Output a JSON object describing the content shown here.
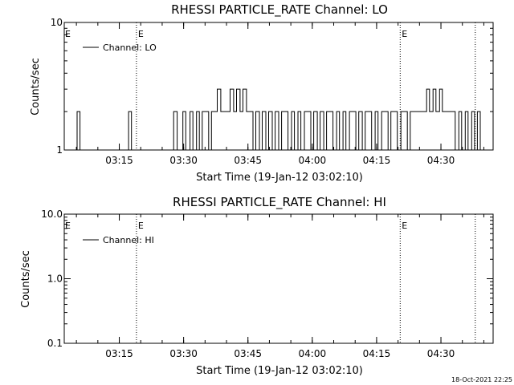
{
  "chart_data": [
    {
      "type": "line",
      "title": "RHESSI PARTICLE_RATE Channel: LO",
      "xlabel": "Start Time (19-Jan-12 03:02:10)",
      "ylabel": "Counts/sec",
      "y_scale": "log",
      "ylim": [
        1,
        10
      ],
      "xlim": [
        "03:02:10",
        "04:42:10"
      ],
      "x_ticks": [
        "03:15",
        "03:30",
        "03:45",
        "04:00",
        "04:15",
        "04:30"
      ],
      "y_ticks": [
        "1",
        "10"
      ],
      "legend": {
        "label": "Channel: LO",
        "placement": "top-left"
      },
      "event_lines": [
        {
          "time": "03:19:00",
          "label": "E"
        },
        {
          "time": "04:20:30",
          "label": "E"
        },
        {
          "time": "04:38:00",
          "label": ""
        }
      ],
      "series": [
        {
          "name": "Channel: LO",
          "x": [
            "03:02:10",
            "03:04:30",
            "03:05:10",
            "03:05:50",
            "03:16:30",
            "03:17:10",
            "03:17:50",
            "03:27:00",
            "03:27:40",
            "03:28:30",
            "03:29:10",
            "03:29:50",
            "03:30:30",
            "03:31:30",
            "03:32:10",
            "03:33:00",
            "03:33:40",
            "03:34:20",
            "03:35:00",
            "03:35:50",
            "03:36:30",
            "03:37:10",
            "03:37:50",
            "03:38:40",
            "03:39:20",
            "03:40:10",
            "03:40:50",
            "03:41:40",
            "03:42:20",
            "03:43:10",
            "03:43:50",
            "03:44:40",
            "03:45:20",
            "03:46:10",
            "03:46:50",
            "03:47:40",
            "03:48:20",
            "03:49:10",
            "03:49:50",
            "03:50:40",
            "03:51:20",
            "03:52:10",
            "03:52:50",
            "03:53:40",
            "03:54:20",
            "03:55:10",
            "03:55:50",
            "03:56:40",
            "03:57:20",
            "03:58:10",
            "03:58:50",
            "03:59:40",
            "04:00:20",
            "04:01:10",
            "04:01:50",
            "04:02:40",
            "04:03:20",
            "04:04:10",
            "04:04:50",
            "04:05:40",
            "04:06:20",
            "04:07:10",
            "04:07:50",
            "04:08:40",
            "04:09:20",
            "04:10:10",
            "04:10:50",
            "04:11:40",
            "04:12:20",
            "04:13:10",
            "04:13:50",
            "04:14:40",
            "04:15:20",
            "04:16:10",
            "04:16:50",
            "04:17:40",
            "04:18:20",
            "04:19:10",
            "04:19:50",
            "04:20:40",
            "04:21:20",
            "04:22:10",
            "04:22:50",
            "04:23:40",
            "04:24:20",
            "04:25:10",
            "04:25:50",
            "04:26:40",
            "04:27:20",
            "04:28:10",
            "04:28:50",
            "04:29:40",
            "04:30:20",
            "04:31:10",
            "04:31:50",
            "04:32:40",
            "04:33:20",
            "04:34:10",
            "04:34:50",
            "04:35:40",
            "04:36:20",
            "04:37:10",
            "04:37:50",
            "04:38:30",
            "04:39:10"
          ],
          "values": [
            1,
            1,
            2,
            1,
            1,
            2,
            1,
            1,
            2,
            1,
            1,
            2,
            1,
            2,
            1,
            2,
            1,
            2,
            2,
            1,
            2,
            2,
            3,
            2,
            2,
            2,
            3,
            2,
            3,
            2,
            3,
            2,
            2,
            1,
            2,
            1,
            2,
            1,
            2,
            1,
            2,
            1,
            2,
            2,
            1,
            2,
            1,
            2,
            1,
            2,
            2,
            1,
            2,
            1,
            2,
            1,
            2,
            2,
            1,
            2,
            1,
            2,
            1,
            2,
            2,
            1,
            2,
            1,
            2,
            2,
            1,
            2,
            1,
            2,
            2,
            1,
            2,
            2,
            1,
            2,
            2,
            1,
            2,
            2,
            2,
            2,
            2,
            3,
            2,
            3,
            2,
            3,
            2,
            2,
            2,
            2,
            1,
            2,
            1,
            2,
            1,
            2,
            1,
            2,
            1
          ]
        }
      ]
    },
    {
      "type": "line",
      "title": "RHESSI PARTICLE_RATE Channel: HI",
      "xlabel": "Start Time (19-Jan-12 03:02:10)",
      "ylabel": "Counts/sec",
      "y_scale": "log",
      "ylim": [
        0.1,
        10
      ],
      "xlim": [
        "03:02:10",
        "04:42:10"
      ],
      "x_ticks": [
        "03:15",
        "03:30",
        "03:45",
        "04:00",
        "04:15",
        "04:30"
      ],
      "y_ticks": [
        "0.1",
        "1.0",
        "10.0"
      ],
      "legend": {
        "label": "Channel: HI",
        "placement": "top-left"
      },
      "event_lines": [
        {
          "time": "03:19:00",
          "label": "E"
        },
        {
          "time": "04:20:30",
          "label": "E"
        },
        {
          "time": "04:38:00",
          "label": ""
        }
      ],
      "series": [
        {
          "name": "Channel: HI",
          "x": [],
          "values": []
        }
      ]
    }
  ],
  "footer": {
    "timestamp": "18-Oct-2021 22:25"
  }
}
